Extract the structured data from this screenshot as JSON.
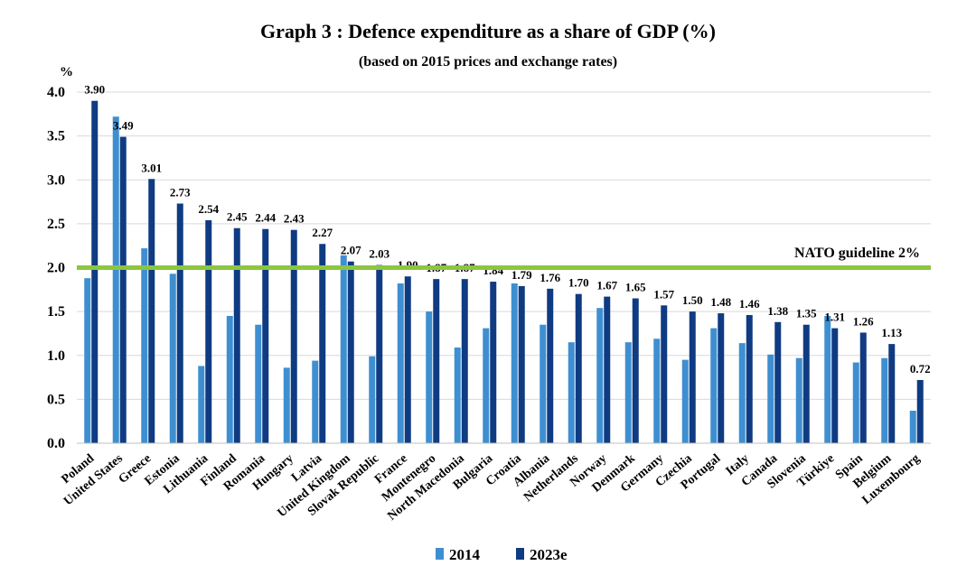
{
  "chart_data": {
    "type": "bar",
    "title": "Graph 3 : Defence expenditure as a share of GDP (%)",
    "subtitle": "(based on 2015 prices and exchange rates)",
    "ylabel": "%",
    "ylim": [
      0,
      4
    ],
    "yticks": [
      "0.0",
      "0.5",
      "1.0",
      "1.5",
      "2.0",
      "2.5",
      "3.0",
      "3.5",
      "4.0"
    ],
    "grid": true,
    "legend_position": "bottom",
    "categories": [
      "Poland",
      "United States",
      "Greece",
      "Estonia",
      "Lithuania",
      "Finland",
      "Romania",
      "Hungary",
      "Latvia",
      "United Kingdom",
      "Slovak Republic",
      "France",
      "Montenegro",
      "North Macedonia",
      "Bulgaria",
      "Croatia",
      "Albania",
      "Netherlands",
      "Norway",
      "Denmark",
      "Germany",
      "Czechia",
      "Portugal",
      "Italy",
      "Canada",
      "Slovenia",
      "Türkiye",
      "Spain",
      "Belgium",
      "Luxembourg"
    ],
    "series": [
      {
        "name": "2014",
        "color": "#3e8fd1",
        "values": [
          1.88,
          3.72,
          2.22,
          1.93,
          0.88,
          1.45,
          1.35,
          0.86,
          0.94,
          2.14,
          0.99,
          1.82,
          1.5,
          1.09,
          1.31,
          1.82,
          1.35,
          1.15,
          1.54,
          1.15,
          1.19,
          0.95,
          1.31,
          1.14,
          1.01,
          0.97,
          1.45,
          0.92,
          0.97,
          0.37
        ]
      },
      {
        "name": "2023e",
        "color": "#0f3b82",
        "values": [
          3.9,
          3.49,
          3.01,
          2.73,
          2.54,
          2.45,
          2.44,
          2.43,
          2.27,
          2.07,
          2.03,
          1.9,
          1.87,
          1.87,
          1.84,
          1.79,
          1.76,
          1.7,
          1.67,
          1.65,
          1.57,
          1.5,
          1.48,
          1.46,
          1.38,
          1.35,
          1.31,
          1.26,
          1.13,
          0.72
        ],
        "labels": [
          "3.90",
          "3.49",
          "3.01",
          "2.73",
          "2.54",
          "2.45",
          "2.44",
          "2.43",
          "2.27",
          "2.07",
          "2.03",
          "1.90",
          "1.87",
          "1.87",
          "1.84",
          "1.79",
          "1.76",
          "1.70",
          "1.67",
          "1.65",
          "1.57",
          "1.50",
          "1.48",
          "1.46",
          "1.38",
          "1.35",
          "1.31",
          "1.26",
          "1.13",
          "0.72"
        ]
      }
    ],
    "reference_line": {
      "value": 2.0,
      "label": "NATO guideline 2%",
      "color": "#8cc63f"
    },
    "gridline_color": "#d9d9d9"
  }
}
